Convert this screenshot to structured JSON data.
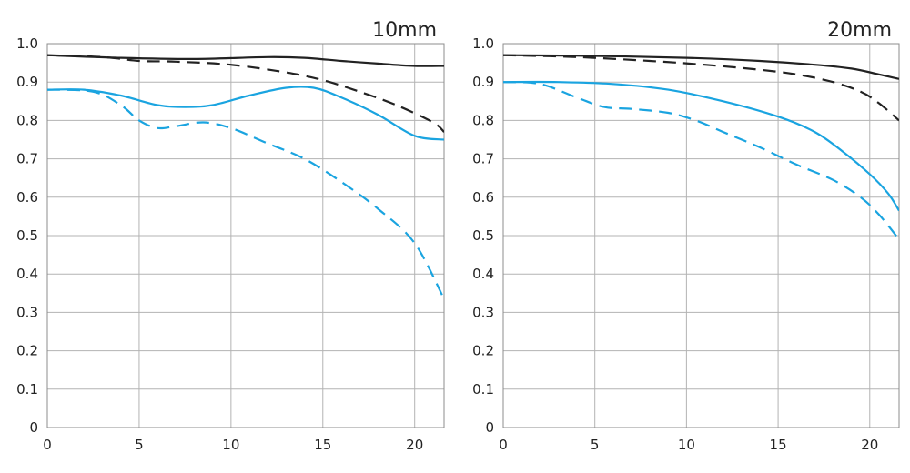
{
  "chart_data": [
    {
      "type": "line",
      "title": "10mm",
      "xlabel": "",
      "ylabel": "",
      "xlim": [
        0,
        21.6
      ],
      "ylim": [
        0,
        1.0
      ],
      "x_ticks": [
        "0",
        "5",
        "10",
        "15",
        "20"
      ],
      "y_ticks": [
        "0",
        "0.1",
        "0.2",
        "0.3",
        "0.4",
        "0.5",
        "0.6",
        "0.7",
        "0.8",
        "0.9",
        "1.0"
      ],
      "grid": true,
      "legend": "none",
      "series": [
        {
          "color": "#222222",
          "dash": "solid",
          "points": [
            [
              0,
              0.97
            ],
            [
              4,
              0.963
            ],
            [
              8,
              0.96
            ],
            [
              12,
              0.965
            ],
            [
              14,
              0.963
            ],
            [
              16,
              0.955
            ],
            [
              18,
              0.948
            ],
            [
              20,
              0.942
            ],
            [
              21.6,
              0.942
            ]
          ]
        },
        {
          "color": "#222222",
          "dash": "dashed",
          "points": [
            [
              0,
              0.97
            ],
            [
              3,
              0.965
            ],
            [
              5,
              0.955
            ],
            [
              7,
              0.953
            ],
            [
              10,
              0.945
            ],
            [
              13,
              0.925
            ],
            [
              15,
              0.905
            ],
            [
              17,
              0.875
            ],
            [
              19,
              0.84
            ],
            [
              21,
              0.795
            ],
            [
              21.6,
              0.77
            ]
          ]
        },
        {
          "color": "#1aa4e0",
          "dash": "solid",
          "points": [
            [
              0,
              0.88
            ],
            [
              2,
              0.88
            ],
            [
              4,
              0.865
            ],
            [
              6,
              0.84
            ],
            [
              7.5,
              0.835
            ],
            [
              9,
              0.84
            ],
            [
              11,
              0.865
            ],
            [
              13,
              0.885
            ],
            [
              14.5,
              0.885
            ],
            [
              16,
              0.86
            ],
            [
              18,
              0.815
            ],
            [
              20,
              0.76
            ],
            [
              21.6,
              0.75
            ]
          ]
        },
        {
          "color": "#1aa4e0",
          "dash": "dashed",
          "points": [
            [
              0,
              0.88
            ],
            [
              2.5,
              0.875
            ],
            [
              4,
              0.84
            ],
            [
              5,
              0.8
            ],
            [
              6,
              0.78
            ],
            [
              7,
              0.785
            ],
            [
              8.5,
              0.795
            ],
            [
              10,
              0.78
            ],
            [
              12,
              0.74
            ],
            [
              14,
              0.7
            ],
            [
              16,
              0.64
            ],
            [
              18,
              0.57
            ],
            [
              20,
              0.48
            ],
            [
              21.6,
              0.335
            ]
          ]
        }
      ]
    },
    {
      "type": "line",
      "title": "20mm",
      "xlabel": "",
      "ylabel": "",
      "xlim": [
        0,
        21.6
      ],
      "ylim": [
        0,
        1.0
      ],
      "x_ticks": [
        "0",
        "5",
        "10",
        "15",
        "20"
      ],
      "y_ticks": [
        "0",
        "0.1",
        "0.2",
        "0.3",
        "0.4",
        "0.5",
        "0.6",
        "0.7",
        "0.8",
        "0.9",
        "1.0"
      ],
      "grid": true,
      "legend": "none",
      "series": [
        {
          "color": "#222222",
          "dash": "solid",
          "points": [
            [
              0,
              0.97
            ],
            [
              5,
              0.968
            ],
            [
              10,
              0.963
            ],
            [
              14,
              0.955
            ],
            [
              17,
              0.945
            ],
            [
              19,
              0.935
            ],
            [
              20.5,
              0.92
            ],
            [
              21.6,
              0.908
            ]
          ]
        },
        {
          "color": "#222222",
          "dash": "dashed",
          "points": [
            [
              0,
              0.97
            ],
            [
              4,
              0.965
            ],
            [
              8,
              0.955
            ],
            [
              11,
              0.945
            ],
            [
              14,
              0.932
            ],
            [
              16,
              0.92
            ],
            [
              18,
              0.9
            ],
            [
              19.5,
              0.875
            ],
            [
              20.5,
              0.845
            ],
            [
              21.6,
              0.8
            ]
          ]
        },
        {
          "color": "#1aa4e0",
          "dash": "solid",
          "points": [
            [
              0,
              0.9
            ],
            [
              3,
              0.9
            ],
            [
              6,
              0.895
            ],
            [
              9,
              0.88
            ],
            [
              12,
              0.85
            ],
            [
              15,
              0.81
            ],
            [
              17,
              0.77
            ],
            [
              18.5,
              0.72
            ],
            [
              20,
              0.66
            ],
            [
              21,
              0.61
            ],
            [
              21.6,
              0.565
            ]
          ]
        },
        {
          "color": "#1aa4e0",
          "dash": "dashed",
          "points": [
            [
              0,
              0.9
            ],
            [
              2,
              0.895
            ],
            [
              4,
              0.86
            ],
            [
              5.5,
              0.835
            ],
            [
              7,
              0.83
            ],
            [
              9,
              0.82
            ],
            [
              10.5,
              0.8
            ],
            [
              12,
              0.77
            ],
            [
              14,
              0.73
            ],
            [
              16,
              0.685
            ],
            [
              18,
              0.645
            ],
            [
              19.5,
              0.6
            ],
            [
              20.5,
              0.555
            ],
            [
              21.6,
              0.49
            ]
          ]
        }
      ]
    }
  ]
}
